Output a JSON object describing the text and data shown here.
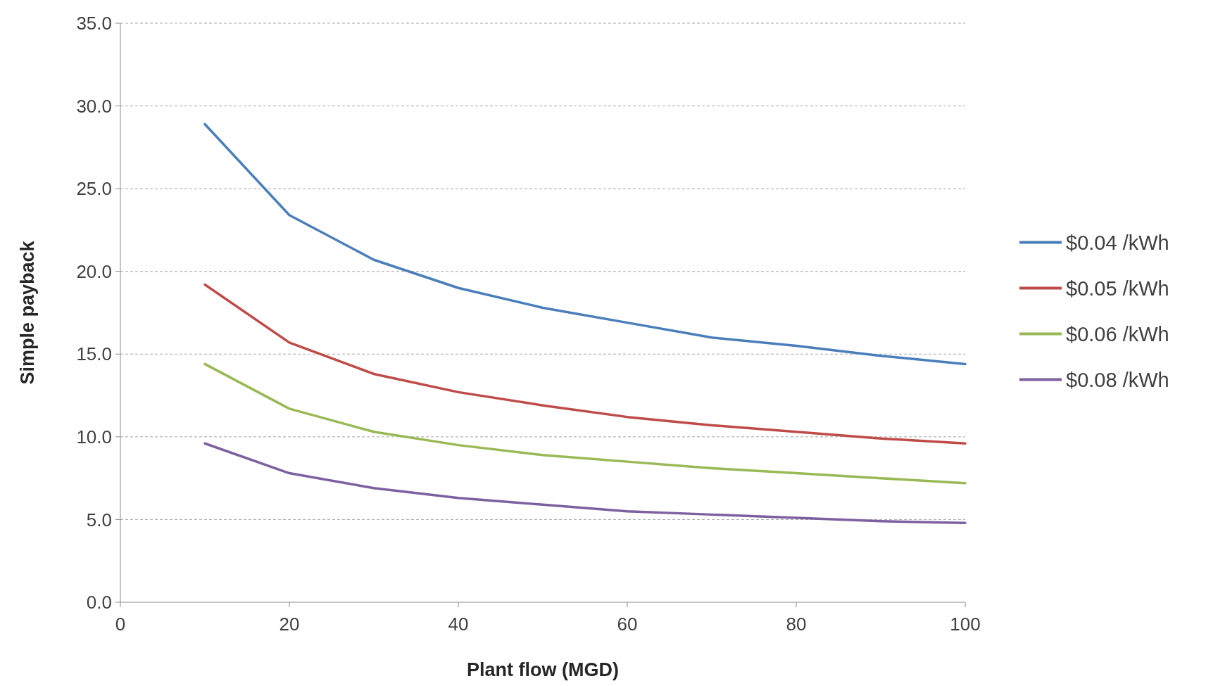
{
  "chart_data": {
    "type": "line",
    "xlabel": "Plant flow (MGD)",
    "ylabel": "Simple payback",
    "x": [
      10,
      20,
      30,
      40,
      50,
      60,
      70,
      80,
      90,
      100
    ],
    "xlim": [
      0,
      100
    ],
    "xticks": [
      0,
      20,
      40,
      60,
      80,
      100
    ],
    "ylim": [
      0,
      35
    ],
    "yticks": [
      {
        "value": 0,
        "label": "0.0"
      },
      {
        "value": 5,
        "label": "5.0"
      },
      {
        "value": 10,
        "label": "10.0"
      },
      {
        "value": 15,
        "label": "15.0"
      },
      {
        "value": 20,
        "label": "20.0"
      },
      {
        "value": 25,
        "label": "25.0"
      },
      {
        "value": 30,
        "label": "30.0"
      },
      {
        "value": 35,
        "label": "35.0"
      }
    ],
    "grid": "y",
    "legend": "right",
    "marker": "none",
    "line_style": "solid",
    "series": [
      {
        "name": "$0.04 /kWh",
        "color": "#4a7ebb",
        "values": [
          28.9,
          23.4,
          20.7,
          19.0,
          17.8,
          16.9,
          16.0,
          15.5,
          14.9,
          14.4
        ]
      },
      {
        "name": "$0.05 /kWh",
        "color": "#be4b48",
        "values": [
          19.2,
          15.7,
          13.8,
          12.7,
          11.9,
          11.2,
          10.7,
          10.3,
          9.9,
          9.6
        ]
      },
      {
        "name": "$0.06 /kWh",
        "color": "#98b954",
        "values": [
          14.4,
          11.7,
          10.3,
          9.5,
          8.9,
          8.5,
          8.1,
          7.8,
          7.5,
          7.2
        ]
      },
      {
        "name": "$0.08 /kWh",
        "color": "#7d60a0",
        "values": [
          9.6,
          7.8,
          6.9,
          6.3,
          5.9,
          5.5,
          5.3,
          5.1,
          4.9,
          4.8
        ]
      }
    ]
  }
}
